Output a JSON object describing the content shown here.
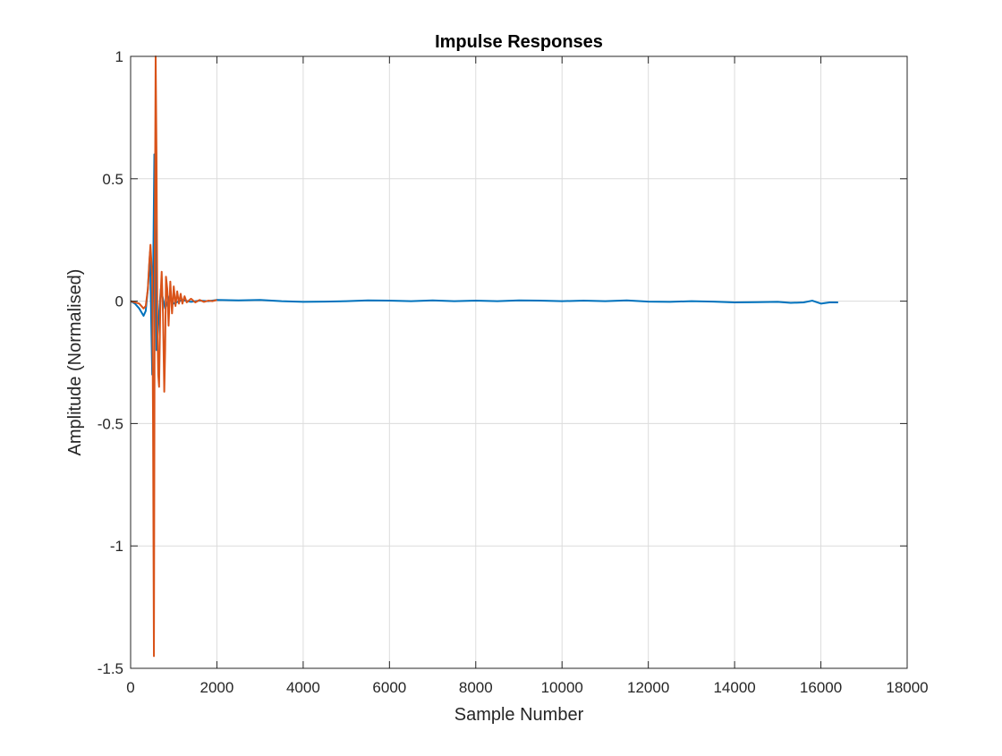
{
  "chart_data": {
    "type": "line",
    "title": "Impulse Responses",
    "xlabel": "Sample Number",
    "ylabel": "Amplitude (Normalised)",
    "xlim": [
      0,
      18000
    ],
    "ylim": [
      -1.5,
      1
    ],
    "xticks": [
      0,
      2000,
      4000,
      6000,
      8000,
      10000,
      12000,
      14000,
      16000,
      18000
    ],
    "yticks": [
      -1.5,
      -1,
      -0.5,
      0,
      0.5,
      1
    ],
    "xtick_labels": [
      "0",
      "2000",
      "4000",
      "6000",
      "8000",
      "10000",
      "12000",
      "14000",
      "16000",
      "18000"
    ],
    "ytick_labels": [
      "-1.5",
      "-1",
      "-0.5",
      "0",
      "0.5",
      "1"
    ],
    "grid": true,
    "legend": "none",
    "series": [
      {
        "color": "#0072BD",
        "x": [
          0,
          100,
          200,
          300,
          350,
          400,
          450,
          500,
          550,
          600,
          700,
          800,
          900,
          1000,
          1200,
          1400,
          1600,
          1800,
          2000,
          2500,
          3000,
          3500,
          4000,
          4500,
          5000,
          5500,
          6000,
          6500,
          7000,
          7500,
          8000,
          8500,
          9000,
          9500,
          10000,
          10500,
          11000,
          11500,
          12000,
          12500,
          13000,
          13500,
          14000,
          14500,
          15000,
          15300,
          15600,
          15800,
          16000,
          16200,
          16400
        ],
        "y": [
          0,
          -0.01,
          -0.03,
          -0.06,
          -0.04,
          0.05,
          0.2,
          -0.3,
          0.6,
          -0.2,
          0.05,
          -0.03,
          0.02,
          -0.01,
          0.005,
          -0.003,
          0.002,
          0.0,
          0.005,
          0.003,
          0.005,
          0.0,
          -0.003,
          -0.002,
          0.0,
          0.003,
          0.002,
          0.0,
          0.003,
          0.0,
          0.002,
          0.0,
          0.003,
          0.002,
          0.0,
          0.002,
          0.0,
          0.003,
          -0.002,
          -0.003,
          0.0,
          -0.002,
          -0.005,
          -0.004,
          -0.003,
          -0.007,
          -0.005,
          0.002,
          -0.01,
          -0.005,
          -0.005
        ]
      },
      {
        "color": "#D95319",
        "x": [
          0,
          100,
          200,
          300,
          350,
          400,
          430,
          460,
          500,
          520,
          540,
          560,
          580,
          600,
          620,
          640,
          660,
          690,
          720,
          750,
          780,
          800,
          820,
          850,
          880,
          920,
          960,
          1000,
          1040,
          1080,
          1120,
          1160,
          1200,
          1250,
          1300,
          1400,
          1500,
          1600,
          1700,
          1800,
          1900,
          2000
        ],
        "y": [
          0,
          -0.005,
          -0.01,
          -0.03,
          -0.02,
          0.05,
          0.15,
          0.23,
          0.1,
          -0.5,
          -1.45,
          0.2,
          1.0,
          0.6,
          -0.1,
          -0.3,
          -0.35,
          0.0,
          0.12,
          -0.05,
          -0.37,
          -0.2,
          0.1,
          0.05,
          -0.1,
          0.08,
          -0.05,
          0.06,
          -0.02,
          0.04,
          -0.01,
          0.03,
          -0.01,
          0.02,
          -0.005,
          0.01,
          -0.005,
          0.005,
          -0.003,
          0.002,
          0.0,
          0.005
        ]
      }
    ]
  }
}
